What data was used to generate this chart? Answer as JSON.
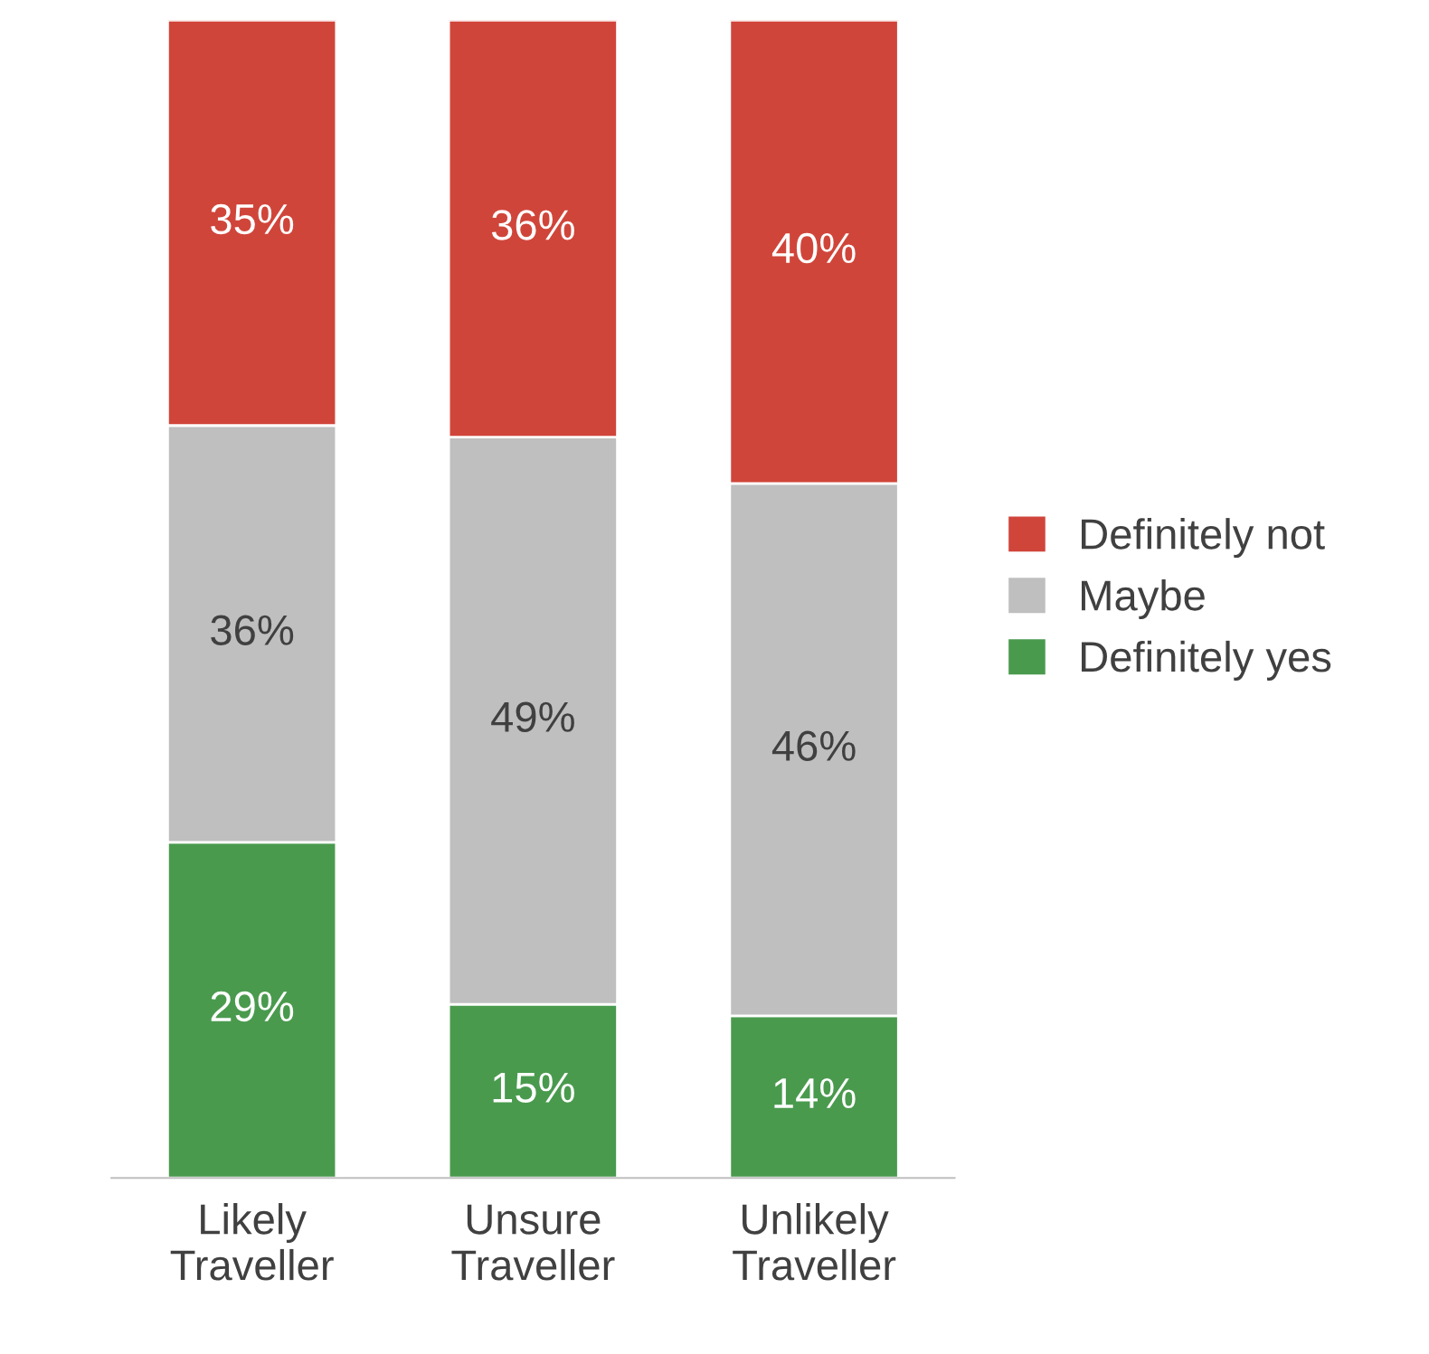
{
  "chart_data": {
    "type": "bar",
    "stacked": true,
    "categories": [
      "Likely Traveller",
      "Unsure Traveller",
      "Unlikely Traveller"
    ],
    "ylim": [
      0,
      100
    ],
    "tick_labels": "x",
    "grid": false,
    "legend": "right",
    "series": [
      {
        "name": "Definitely yes",
        "color": "#4a9a4e",
        "values": [
          29,
          15,
          14
        ],
        "value_labels": [
          "29%",
          "15%",
          "14%"
        ]
      },
      {
        "name": "Maybe",
        "color": "#bfbfbf",
        "values": [
          36,
          49,
          46
        ],
        "value_labels": [
          "36%",
          "49%",
          "46%"
        ]
      },
      {
        "name": "Definitely not",
        "color": "#d0453a",
        "values": [
          35,
          36,
          40
        ],
        "value_labels": [
          "35%",
          "36%",
          "40%"
        ]
      }
    ]
  }
}
